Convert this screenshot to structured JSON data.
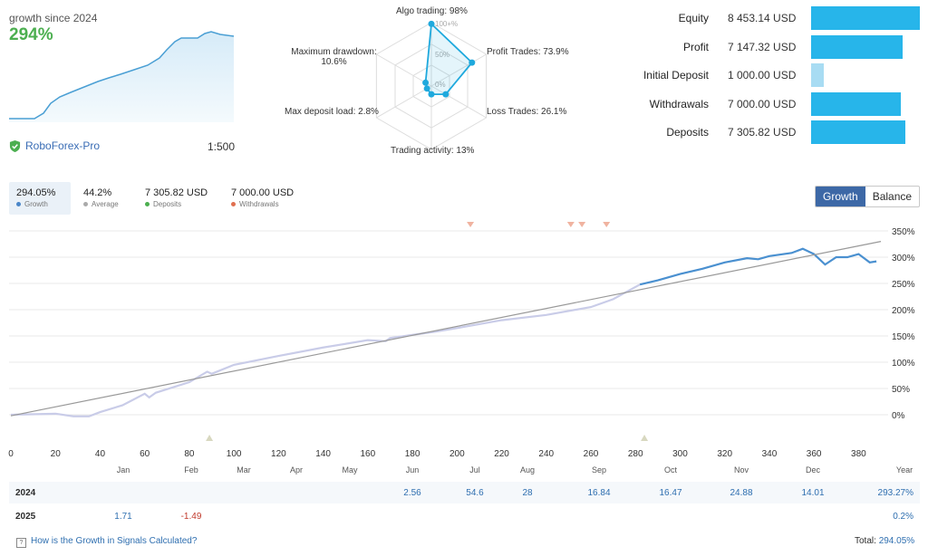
{
  "summary": {
    "since_label": "growth since 2024",
    "growth_pct": "294%",
    "broker": "RoboForex-Pro",
    "leverage": "1:500"
  },
  "radar": {
    "grid_labels": [
      "100+%",
      "50%",
      "0%"
    ],
    "axes": [
      {
        "label": "Algo trading: 98%",
        "value": 98
      },
      {
        "label": "Profit Trades: 73.9%",
        "value": 73.9
      },
      {
        "label": "Loss Trades: 26.1%",
        "value": 26.1
      },
      {
        "label": "Trading activity: 13%",
        "value": 13
      },
      {
        "label": "Max deposit load: 2.8%",
        "value": 2.8
      },
      {
        "label_line1": "Maximum drawdown:",
        "label_line2": "10.6%",
        "value": 10.6
      }
    ],
    "accent": "#1fa9dd"
  },
  "stats": [
    {
      "label": "Equity",
      "value": "8 453.14 USD",
      "amount": 8453.14
    },
    {
      "label": "Profit",
      "value": "7 147.32 USD",
      "amount": 7147.32
    },
    {
      "label": "Initial Deposit",
      "value": "1 000.00 USD",
      "amount": 1000.0
    },
    {
      "label": "Withdrawals",
      "value": "7 000.00 USD",
      "amount": 7000.0
    },
    {
      "label": "Deposits",
      "value": "7 305.82 USD",
      "amount": 7305.82
    }
  ],
  "tabs": [
    {
      "value": "294.05%",
      "label": "Growth",
      "color": "#4a86c8"
    },
    {
      "value": "44.2%",
      "label": "Average",
      "color": "#aaaaaa"
    },
    {
      "value": "7 305.82 USD",
      "label": "Deposits",
      "color": "#4caf50"
    },
    {
      "value": "7 000.00 USD",
      "label": "Withdrawals",
      "color": "#e07050"
    }
  ],
  "toggle": {
    "growth": "Growth",
    "balance": "Balance"
  },
  "chart_data": {
    "type": "line",
    "y_ticks": [
      "350%",
      "300%",
      "250%",
      "200%",
      "150%",
      "100%",
      "50%",
      "0%"
    ],
    "x_ticks": [
      "0",
      "20",
      "40",
      "60",
      "80",
      "100",
      "120",
      "140",
      "160",
      "180",
      "200",
      "220",
      "240",
      "260",
      "280",
      "300",
      "320",
      "340",
      "360",
      "380"
    ],
    "xlim": [
      0,
      390
    ],
    "ylim": [
      -50,
      350
    ],
    "series": [
      {
        "color": "#c9cce8",
        "x": [
          0,
          20,
          28,
          35,
          40,
          50,
          60,
          62,
          65,
          80,
          88,
          90,
          100,
          120,
          140,
          160,
          168,
          170,
          190,
          200,
          220,
          240,
          260,
          270,
          282
        ],
        "y": [
          0,
          2,
          -3,
          -3,
          5,
          18,
          40,
          33,
          42,
          62,
          82,
          78,
          95,
          112,
          128,
          142,
          140,
          146,
          158,
          165,
          180,
          190,
          205,
          220,
          248
        ]
      },
      {
        "color": "#4a90d0",
        "x": [
          282,
          290,
          300,
          310,
          320,
          330,
          335,
          340,
          350,
          355,
          358,
          360,
          365,
          370,
          375,
          380,
          385,
          388
        ],
        "y": [
          248,
          256,
          268,
          278,
          290,
          298,
          296,
          302,
          308,
          316,
          310,
          306,
          286,
          300,
          300,
          306,
          290,
          292
        ]
      },
      {
        "color": "#999999",
        "x": [
          0,
          390
        ],
        "y": [
          -2,
          330
        ]
      }
    ],
    "markers_top_x": [
      206,
      251,
      256,
      267
    ],
    "markers_bottom_x": [
      89,
      284
    ]
  },
  "months": [
    "Jan",
    "Feb",
    "Mar",
    "Apr",
    "May",
    "Jun",
    "Jul",
    "Aug",
    "Sep",
    "Oct",
    "Nov",
    "Dec",
    "Year"
  ],
  "table_rows": [
    {
      "year": "2024",
      "cells": [
        "",
        "",
        "",
        "",
        "",
        "2.56",
        "54.6",
        "28",
        "16.84",
        "16.47",
        "24.88",
        "14.01"
      ],
      "total": "293.27%"
    },
    {
      "year": "2025",
      "cells": [
        "1.71",
        "-1.49",
        "",
        "",
        "",
        "",
        "",
        "",
        "",
        "",
        "",
        ""
      ],
      "total": "0.2%"
    }
  ],
  "footer": {
    "link": "How is the Growth in Signals Calculated?",
    "total_label": "Total:",
    "total_value": "294.05%"
  }
}
